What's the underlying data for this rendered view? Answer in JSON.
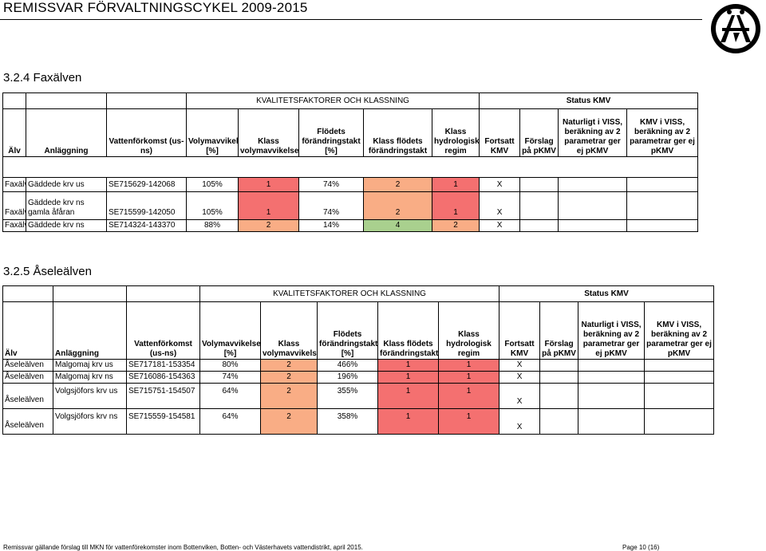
{
  "header": {
    "title": "REMISSVAR FÖRVALTNINGSCYKEL 2009-2015"
  },
  "colors": {
    "red": "#f47070",
    "orange": "#f9ad85",
    "green": "#a9d08e"
  },
  "sections": [
    {
      "title": "3.2.4  Faxälven",
      "group1": "KVALITETSFAKTORER OCH KLASSNING",
      "group2": "Status KMV",
      "columns": [
        "Älv",
        "Anläggning",
        "Vattenförkomst (us-ns)",
        "Volymavvikelse [%]",
        "Klass volymavvikelse",
        "Flödets förändringstakt [%]",
        "Klass flödets förändringstakt",
        "Klass hydrologisk regim",
        "Fortsatt KMV",
        "Förslag på pKMV",
        "Naturligt i VISS, beräkning av 2 parametrar ger ej pKMV",
        "KMV i VISS, beräkning av 2 parametrar ger ej pKMV"
      ],
      "rows": [
        [
          "Faxälven",
          "Gäddede krv us",
          "SE715629-142068",
          "105%",
          "1",
          "74%",
          "2",
          "1",
          "X",
          "",
          "",
          ""
        ],
        [
          "Faxälven",
          "Gäddede krv ns gamla åfåran",
          "SE715599-142050",
          "105%",
          "1",
          "74%",
          "2",
          "1",
          "X",
          "",
          "",
          ""
        ],
        [
          "Faxälven",
          "Gäddede krv ns",
          "SE714324-143370",
          "88%",
          "2",
          "14%",
          "4",
          "2",
          "X",
          "",
          "",
          ""
        ]
      ]
    },
    {
      "title": "3.2.5  Åseleälven",
      "group1": "KVALITETSFAKTORER OCH KLASSNING",
      "group2": "Status KMV",
      "columns": [
        "Älv",
        "Anläggning",
        "Vattenförkomst (us-ns)",
        "Volymavvikelse [%]",
        "Klass volymavvikelse",
        "Flödets förändringstakt [%]",
        "Klass flödets förändringstakt",
        "Klass hydrologisk regim",
        "Fortsatt KMV",
        "Förslag på pKMV",
        "Naturligt i VISS, beräkning av 2 parametrar ger ej pKMV",
        "KMV i VISS, beräkning av 2 parametrar ger ej pKMV"
      ],
      "rows": [
        [
          "Åseleälven",
          "Malgomaj krv us",
          "SE717181-153354",
          "80%",
          "2",
          "466%",
          "1",
          "1",
          "X",
          "",
          "",
          ""
        ],
        [
          "Åseleälven",
          "Malgomaj krv ns",
          "SE716086-154363",
          "74%",
          "2",
          "196%",
          "1",
          "1",
          "X",
          "",
          "",
          ""
        ],
        [
          "Åseleälven",
          "Volgsjöfors krv us",
          "SE715751-154507",
          "64%",
          "2",
          "355%",
          "1",
          "1",
          "X",
          "",
          "",
          ""
        ],
        [
          "Åseleälven",
          "Volgsjöfors krv ns",
          "SE715559-154581",
          "64%",
          "2",
          "358%",
          "1",
          "1",
          "X",
          "",
          "",
          ""
        ]
      ]
    }
  ],
  "footer": {
    "left": "Remissvar gällande förslag till MKN för vattenförekomster inom Bottenviken, Botten- och Västerhavets vattendistrikt, april 2015.",
    "right": "Page 10 (16)"
  }
}
